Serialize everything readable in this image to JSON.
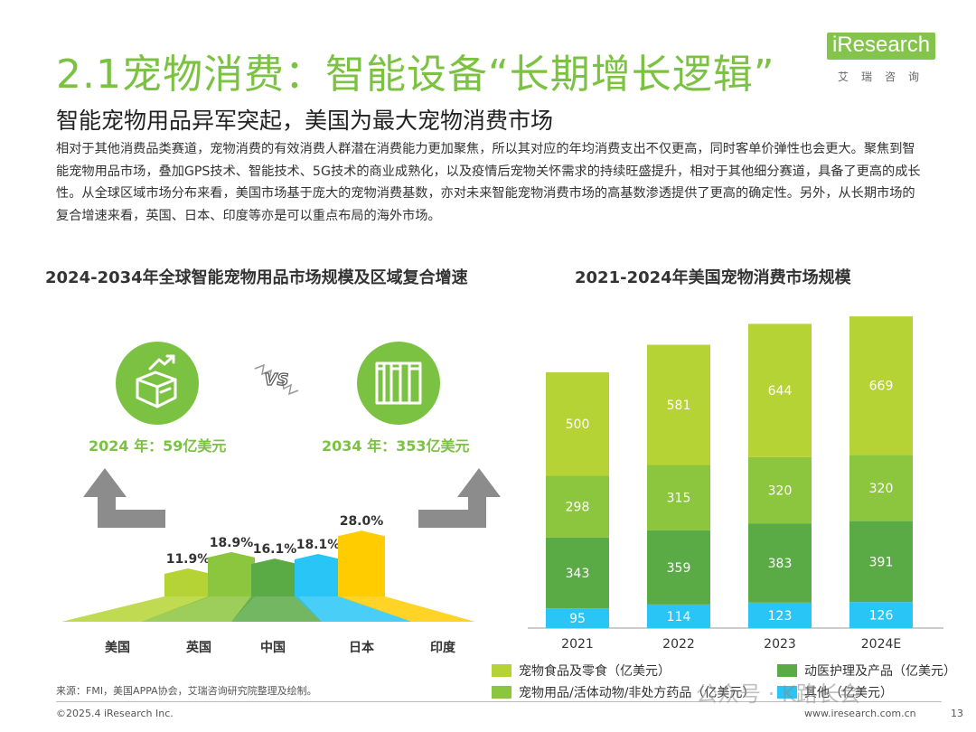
{
  "title": "2.1宠物消费：智能设备“长期增长逻辑”",
  "logo": {
    "en": "iResearch",
    "cn": "艾瑞咨询"
  },
  "subtitle": "智能宠物用品异军突起，美国为最大宠物消费市场",
  "body": "相对于其他消费品类赛道，宠物消费的有效消费人群潜在消费能力更加聚焦，所以其对应的年均消费支出不仅更高，同时客单价弹性也会更大。聚焦到智能宠物用品市场，叠加GPS技术、智能技术、5G技术的商业成熟化，以及疫情后宠物关怀需求的持续旺盛提升，相对于其他细分赛道，具备了更高的成长性。从全球区域市场分布来看，美国市场基于庞大的宠物消费基数，亦对未来智能宠物消费市场的高基数渗透提供了更高的确定性。另外，从长期市场的复合增速来看，英国、日本、印度等亦是可以重点布局的海外市场。",
  "left_section": {
    "title": "2024-2034年全球智能宠物用品市场规模及区域复合增速",
    "vs_label": "VS",
    "year_2024": "2024 年：59亿美元",
    "year_2034": "2034 年：353亿美元"
  },
  "right_section": {
    "title": "2021-2024年美国宠物消费市场规模"
  },
  "chart_data": [
    {
      "type": "bar",
      "categories": [
        "美国",
        "英国",
        "中国",
        "日本",
        "印度"
      ],
      "values": [
        11.9,
        18.9,
        16.1,
        18.1,
        28.0
      ],
      "labels": [
        "11.9%",
        "18.9%",
        "16.1%",
        "18.1%",
        "28.0%"
      ],
      "colors": [
        "#b5d334",
        "#8cc63f",
        "#5aaa46",
        "#29c5f6",
        "#ffcc00"
      ]
    },
    {
      "type": "bar",
      "stacked": true,
      "categories": [
        "2021",
        "2022",
        "2023",
        "2024E"
      ],
      "series": [
        {
          "name": "其他（亿美元）",
          "values": [
            95,
            114,
            123,
            126
          ],
          "color": "#29c5f6"
        },
        {
          "name": "动医护理及产品（亿美元）",
          "values": [
            343,
            359,
            383,
            391
          ],
          "color": "#5aaa46"
        },
        {
          "name": "宠物用品/活体动物/非处方药品（亿美元）",
          "values": [
            298,
            315,
            320,
            320
          ],
          "color": "#8cc63f"
        },
        {
          "name": "宠物食品及零食（亿美元）",
          "values": [
            500,
            581,
            644,
            669
          ],
          "color": "#b5d334"
        }
      ],
      "legend_position": "bottom"
    }
  ],
  "source": "来源：FMI，美国APPA协会，艾瑞咨询研究院整理及绘制。",
  "footer": {
    "copyright": "©2025.4 iResearch Inc.",
    "website": "www.iresearch.com.cn",
    "page": "13"
  },
  "watermark": "公众号 · K路长会"
}
